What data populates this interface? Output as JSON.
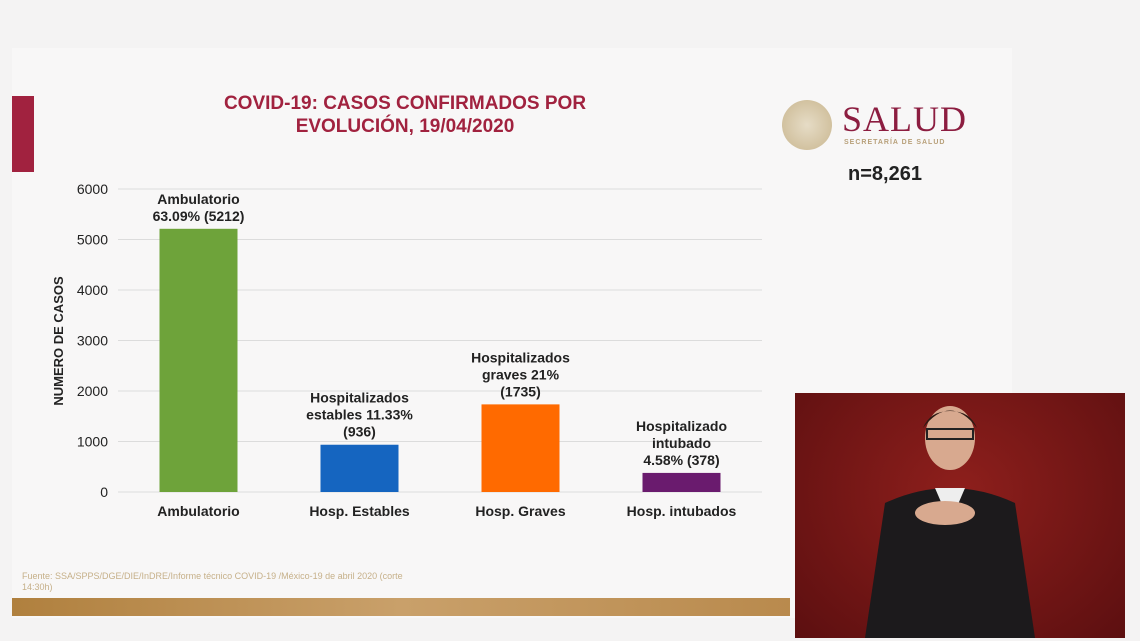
{
  "title_line1": "COVID-19: CASOS CONFIRMADOS POR",
  "title_line2": "EVOLUCIÓN, 19/04/2020",
  "logo": {
    "name": "SALUD",
    "subtitle": "SECRETARÍA DE SALUD"
  },
  "n_label": "n=8,261",
  "source": "Fuente: SSA/SPPS/DGE/DIE/InDRE/Informe técnico COVID-19 /México-19 de abril 2020 (corte 14:30h)",
  "chart_data": {
    "type": "bar",
    "title": "COVID-19: CASOS CONFIRMADOS POR EVOLUCIÓN, 19/04/2020",
    "xlabel": "",
    "ylabel": "NUMERO DE CASOS",
    "ylim": [
      0,
      6000
    ],
    "yticks": [
      "0",
      "1000",
      "2000",
      "3000",
      "4000",
      "5000",
      "6000"
    ],
    "grid": true,
    "categories": [
      "Ambulatorio",
      "Hosp. Estables",
      "Hosp. Graves",
      "Hosp. intubados"
    ],
    "values": [
      5212,
      936,
      1735,
      378
    ],
    "colors": [
      "#6ea33a",
      "#1565c0",
      "#ff6a00",
      "#6a1b6e"
    ],
    "data_labels": [
      [
        "Ambulatorio",
        "63.09% (5212)"
      ],
      [
        "Hospitalizados",
        "estables 11.33%",
        "(936)"
      ],
      [
        "Hospitalizados",
        "graves 21%",
        "(1735)"
      ],
      [
        "Hospitalizado",
        "intubado",
        "4.58% (378)"
      ]
    ]
  }
}
